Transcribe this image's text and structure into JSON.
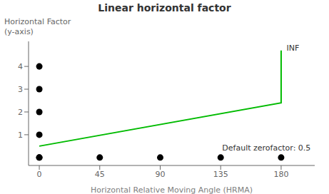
{
  "chart_data": {
    "type": "line",
    "title": "Linear horizontal factor",
    "xlabel": "Horizontal Relative Moving Angle (HRMA)",
    "ylabel": "Horizontal Factor\n(y-axis)",
    "xlim": [
      -8,
      205
    ],
    "ylim": [
      -0.35,
      5.1
    ],
    "xticks": [
      0,
      45,
      90,
      135,
      180
    ],
    "yticks": [
      1,
      2,
      3,
      4
    ],
    "series": [
      {
        "type": "line",
        "color": "#00bb00",
        "x": [
          0,
          180,
          180
        ],
        "values": [
          0.5,
          2.4,
          4.7
        ]
      },
      {
        "type": "scatter",
        "color": "#000000",
        "marker": "circle",
        "x": [
          0,
          0,
          0,
          0,
          0,
          0,
          45,
          90,
          135,
          180
        ],
        "values": [
          0,
          1,
          2,
          3,
          4,
          0,
          0,
          0,
          0,
          0
        ]
      }
    ],
    "annotations": [
      {
        "text": "Default zerofactor: 0.5",
        "x": 202,
        "y": 0.42
      },
      {
        "text": "INF",
        "x": 184,
        "y": 4.8
      }
    ]
  }
}
